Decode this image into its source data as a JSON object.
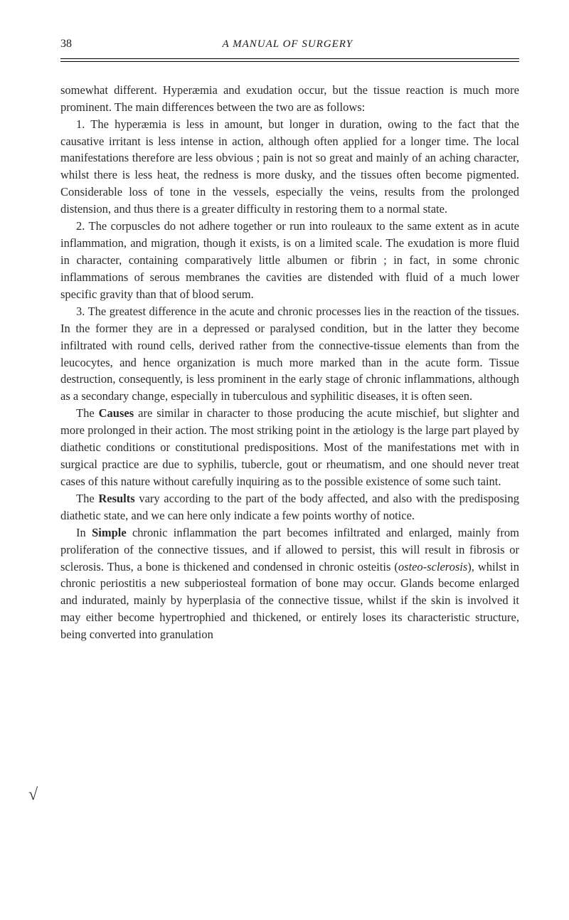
{
  "header": {
    "page_number": "38",
    "title": "A MANUAL OF SURGERY"
  },
  "paragraphs": {
    "p1": "somewhat different. Hyperæmia and exudation occur, but the tissue reaction is much more prominent. The main differences between the two are as follows:",
    "p2": "1. The hyperæmia is less in amount, but longer in duration, owing to the fact that the causative irritant is less intense in action, although often applied for a longer time. The local manifestations therefore are less obvious ; pain is not so great and mainly of an aching character, whilst there is less heat, the redness is more dusky, and the tissues often become pigmented. Considerable loss of tone in the vessels, especially the veins, results from the prolonged distension, and thus there is a greater difficulty in restoring them to a normal state.",
    "p3": "2. The corpuscles do not adhere together or run into rouleaux to the same extent as in acute inflammation, and migration, though it exists, is on a limited scale. The exudation is more fluid in character, containing comparatively little albumen or fibrin ; in fact, in some chronic inflammations of serous membranes the cavities are distended with fluid of a much lower specific gravity than that of blood serum.",
    "p4": "3. The greatest difference in the acute and chronic processes lies in the reaction of the tissues. In the former they are in a depressed or paralysed condition, but in the latter they become infiltrated with round cells, derived rather from the connective-tissue elements than from the leucocytes, and hence organization is much more marked than in the acute form. Tissue destruction, consequently, is less prominent in the early stage of chronic inflammations, although as a secondary change, especially in tuberculous and syphilitic diseases, it is often seen.",
    "p5_pre": "The ",
    "p5_bold": "Causes",
    "p5_post": " are similar in character to those producing the acute mischief, but slighter and more prolonged in their action. The most striking point in the ætiology is the large part played by diathetic conditions or constitutional predispositions. Most of the manifestations met with in surgical practice are due to syphilis, tubercle, gout or rheumatism, and one should never treat cases of this nature without carefully inquiring as to the possible existence of some such taint.",
    "p6_pre": "The ",
    "p6_bold": "Results",
    "p6_post": " vary according to the part of the body affected, and also with the predisposing diathetic state, and we can here only indicate a few points worthy of notice.",
    "p7_pre": "In ",
    "p7_bold": "Simple",
    "p7_mid1": " chronic inflammation the part becomes infiltrated and enlarged, mainly from proliferation of the connective tissues, and if allowed to persist, this will result in fibrosis or sclerosis. Thus, a bone is thickened and condensed in chronic osteitis (",
    "p7_italic": "osteo-sclerosis",
    "p7_mid2": "), whilst in chronic periostitis a new subperiosteal formation of bone may occur. Glands become enlarged and indurated, mainly by hyperplasia of the connective tissue, whilst if the skin is involved it may either become hypertrophied and thickened, or entirely loses its characteristic structure, being converted into granulation"
  },
  "margin_annotation": "√",
  "colors": {
    "text": "#2a2a2a",
    "background": "#ffffff",
    "rule": "#000000"
  },
  "typography": {
    "body_font_size": 16.5,
    "header_font_size": 15,
    "line_height": 1.45
  }
}
